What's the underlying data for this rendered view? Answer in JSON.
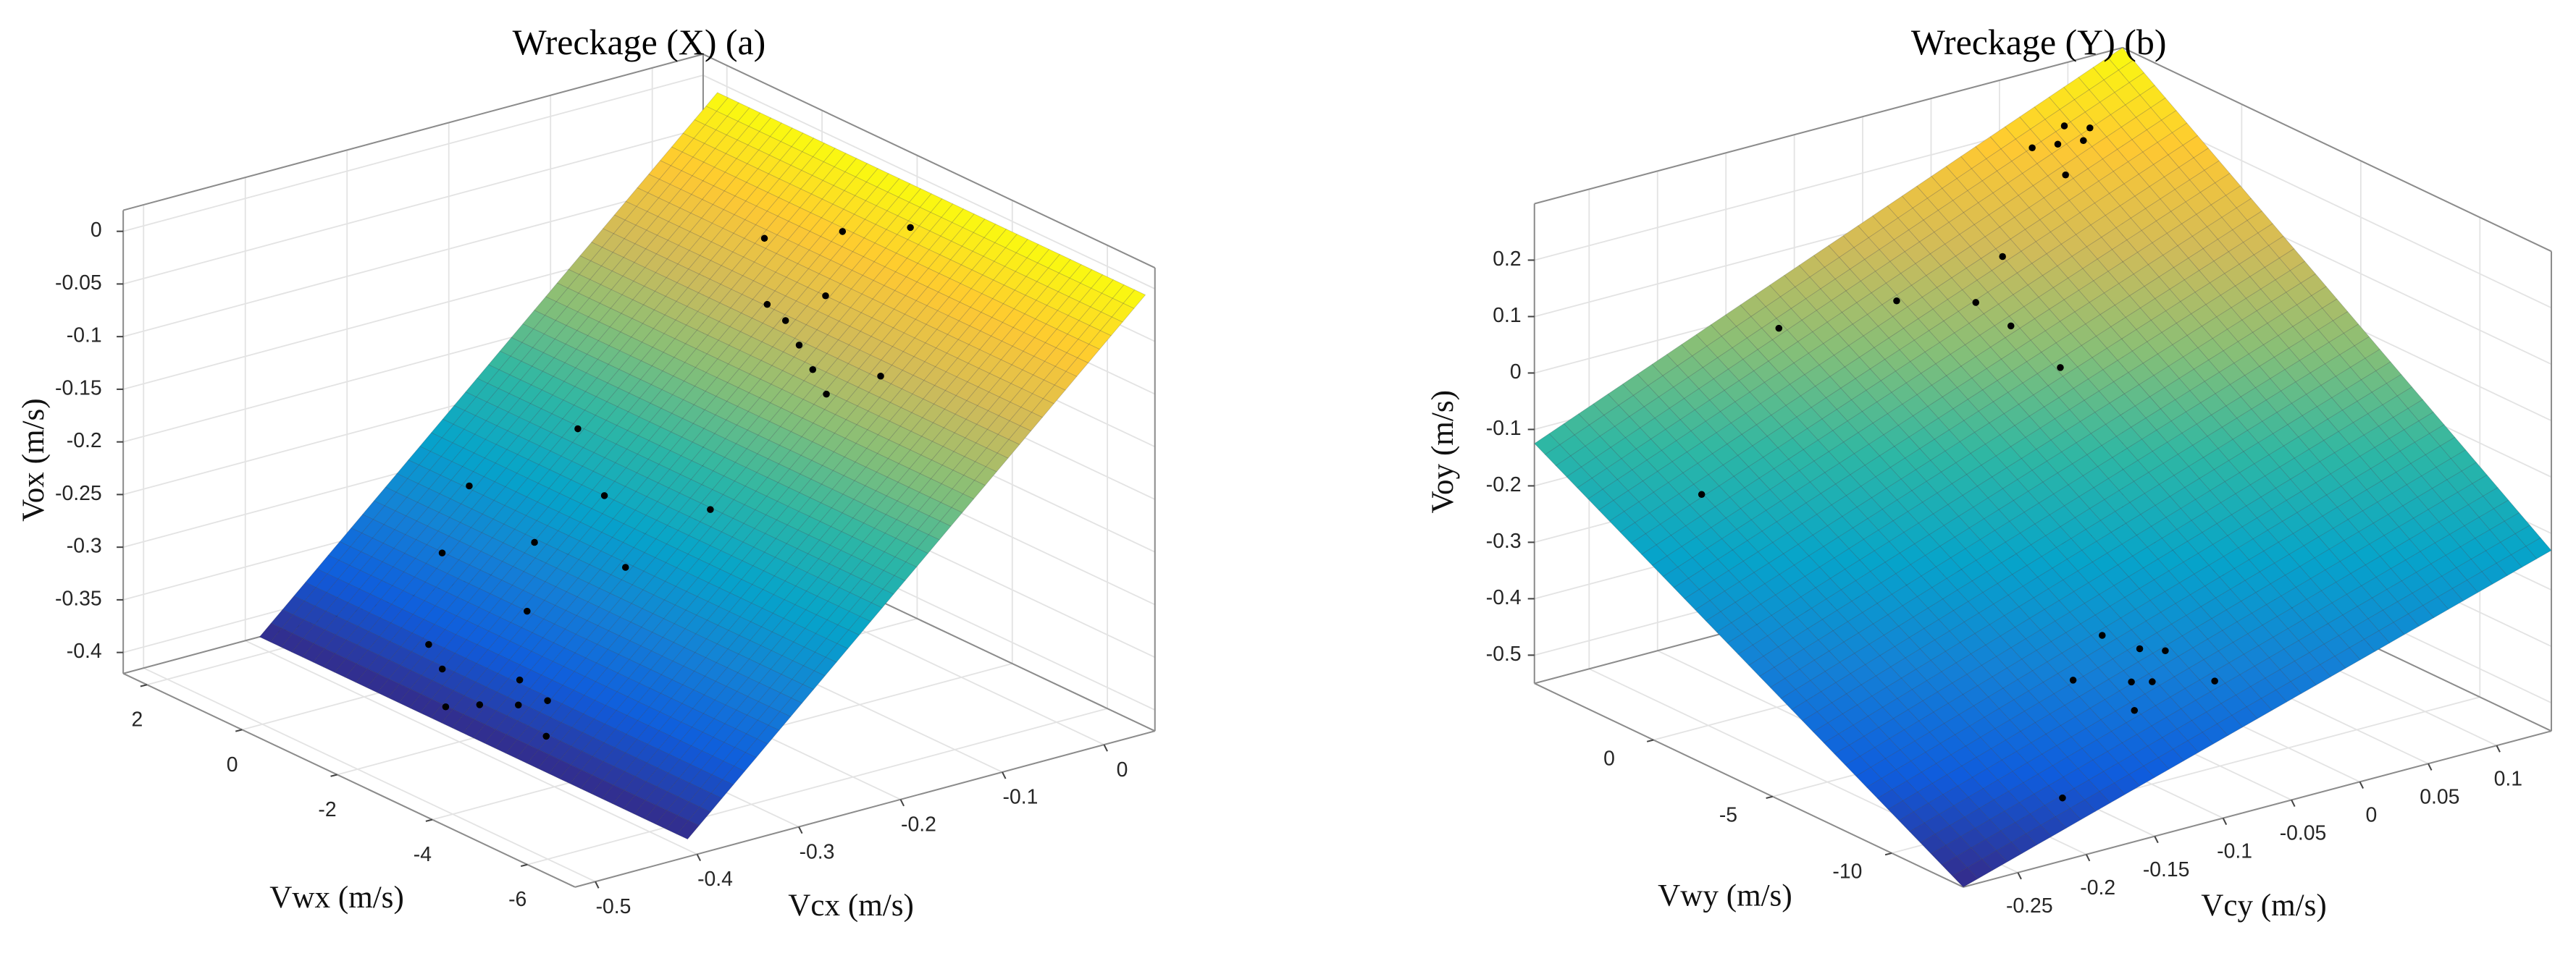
{
  "chart_data": [
    {
      "type": "surface3d",
      "title": "Wreckage (X) (a)",
      "xlabel": "Vwx (m/s)",
      "ylabel": "Vcx (m/s)",
      "zlabel": "Vox (m/s)",
      "xlim": [
        -7,
        2.5
      ],
      "ylim": [
        -0.52,
        0.05
      ],
      "zlim": [
        -0.42,
        0.02
      ],
      "xticks": [
        -6,
        -4,
        -2,
        0,
        2
      ],
      "yticks": [
        -0.5,
        -0.4,
        -0.3,
        -0.2,
        -0.1,
        0
      ],
      "zticks": [
        -0.4,
        -0.35,
        -0.3,
        -0.25,
        -0.2,
        -0.15,
        -0.1,
        -0.05,
        0
      ],
      "grid": true,
      "colormap": [
        "#352a87",
        "#0f5cdd",
        "#1481d6",
        "#06a4ca",
        "#2eb7a4",
        "#87bf77",
        "#d1bb59",
        "#fec832",
        "#f9fb0e"
      ],
      "surface": {
        "x": [
          -6.8,
          2.2
        ],
        "y": [
          -0.4,
          0.05
        ],
        "z": [
          [
            -0.41,
            -0.01
          ],
          [
            -0.41,
            -0.01
          ]
        ]
      },
      "points": {
        "color": "#000000",
        "x": [
          -2.0,
          -2.6,
          -1.5,
          -3.0,
          -1.0,
          -2.2,
          -3.4,
          -0.5,
          -1.5,
          0.5,
          -0.8,
          1.0,
          -2.5,
          -1.2,
          0.0,
          -3.0,
          -2.3,
          -1.8,
          -2.8,
          -1.2,
          -3.3,
          -2.0,
          -0.5,
          -3.8,
          -1.5,
          -2.5
        ],
        "y": [
          -0.38,
          -0.37,
          -0.39,
          -0.36,
          -0.37,
          -0.35,
          -0.38,
          -0.36,
          -0.31,
          -0.3,
          -0.27,
          -0.25,
          -0.26,
          -0.22,
          -0.19,
          -0.2,
          -0.08,
          -0.07,
          -0.09,
          -0.06,
          -0.1,
          -0.04,
          -0.03,
          -0.07,
          0.0,
          0.02
        ],
        "z": [
          -0.39,
          -0.38,
          -0.4,
          -0.37,
          -0.38,
          -0.37,
          -0.39,
          -0.37,
          -0.33,
          -0.32,
          -0.29,
          -0.28,
          -0.28,
          -0.25,
          -0.22,
          -0.23,
          -0.12,
          -0.11,
          -0.13,
          -0.11,
          -0.14,
          -0.09,
          -0.07,
          -0.12,
          -0.05,
          -0.03
        ]
      }
    },
    {
      "type": "surface3d",
      "title": "Wreckage (Y) (b)",
      "xlabel": "Vwy (m/s)",
      "ylabel": "Vcy (m/s)",
      "zlabel": "Voy (m/s)",
      "xlim": [
        -13,
        5
      ],
      "ylim": [
        -0.29,
        0.14
      ],
      "zlim": [
        -0.55,
        0.3
      ],
      "xticks": [
        -10,
        -5,
        0
      ],
      "yticks": [
        -0.25,
        -0.2,
        -0.15,
        -0.1,
        -0.05,
        0,
        0.05,
        0.1
      ],
      "zticks": [
        -0.5,
        -0.4,
        -0.3,
        -0.2,
        -0.1,
        0,
        0.1,
        0.2
      ],
      "grid": true,
      "colormap": [
        "#352a87",
        "#0f5cdd",
        "#1481d6",
        "#06a4ca",
        "#2eb7a4",
        "#87bf77",
        "#d1bb59",
        "#fec832",
        "#f9fb0e"
      ],
      "surface": {
        "x": [
          -13,
          5
        ],
        "y": [
          -0.29,
          0.14
        ],
        "z": [
          [
            -0.55,
            -0.23
          ],
          [
            -0.125,
            0.3
          ]
        ]
      },
      "points": {
        "color": "#000000",
        "x": [
          3.7,
          3.2,
          4.2,
          3.5,
          2.8,
          4.0,
          1.4,
          0.5,
          2.0,
          3.0,
          -1.0,
          4.5,
          -10.3,
          -9.5,
          -11.0,
          -10.0,
          -8.5,
          -11.5,
          -9.0,
          -10.6,
          -12.0,
          2.0
        ],
        "y": [
          0.07,
          0.08,
          0.06,
          0.09,
          0.06,
          0.08,
          -0.03,
          -0.02,
          0.0,
          -0.06,
          -0.01,
          -0.12,
          -0.12,
          -0.1,
          -0.13,
          -0.09,
          -0.11,
          -0.08,
          -0.14,
          -0.11,
          -0.2,
          -0.22
        ],
        "z": [
          0.2,
          0.21,
          0.19,
          0.22,
          0.17,
          0.22,
          0.03,
          0.0,
          0.08,
          0.02,
          -0.05,
          -0.02,
          -0.35,
          -0.32,
          -0.38,
          -0.32,
          -0.31,
          -0.35,
          -0.36,
          -0.35,
          -0.47,
          -0.2
        ]
      }
    }
  ]
}
